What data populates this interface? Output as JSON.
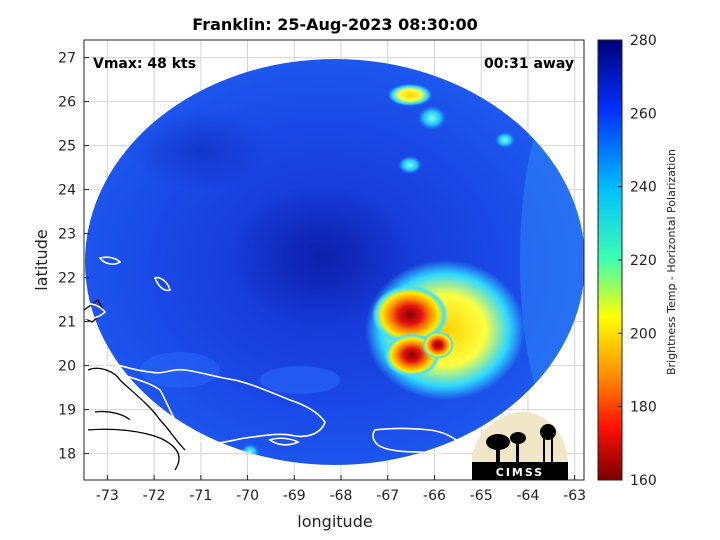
{
  "title": "Franklin: 25-Aug-2023 08:30:00",
  "vmax_label": "Vmax: 48 kts",
  "away_label": "00:31 away",
  "xlabel": "longitude",
  "ylabel": "latitude",
  "colorbar": {
    "label": "Brightness Temp - Horizontal Polarization",
    "ticks": [
      "280",
      "260",
      "240",
      "220",
      "200",
      "180",
      "160"
    ],
    "stops": [
      "#7a0000",
      "#ff0000",
      "#ff8c00",
      "#ffff00",
      "#00ffff",
      "#0050ff",
      "#00007a"
    ]
  },
  "x_ticks": [
    "-73",
    "-72",
    "-71",
    "-70",
    "-69",
    "-68",
    "-67",
    "-66",
    "-65",
    "-64",
    "-63"
  ],
  "y_ticks": [
    "27",
    "26",
    "25",
    "24",
    "23",
    "22",
    "21",
    "20",
    "19",
    "18"
  ],
  "logo": {
    "text": "CIMSS"
  },
  "chart_data": {
    "type": "heatmap",
    "title": "Franklin: 25-Aug-2023 08:30:00",
    "xlabel": "longitude",
    "ylabel": "latitude",
    "xlim": [
      -73.5,
      -62.8
    ],
    "ylim": [
      17.4,
      27.4
    ],
    "color_range": [
      160,
      280
    ],
    "colorbar_label": "Brightness Temp - Horizontal Polarization",
    "annotations": [
      "Vmax: 48 kts",
      "00:31 away"
    ],
    "grid": true
  }
}
